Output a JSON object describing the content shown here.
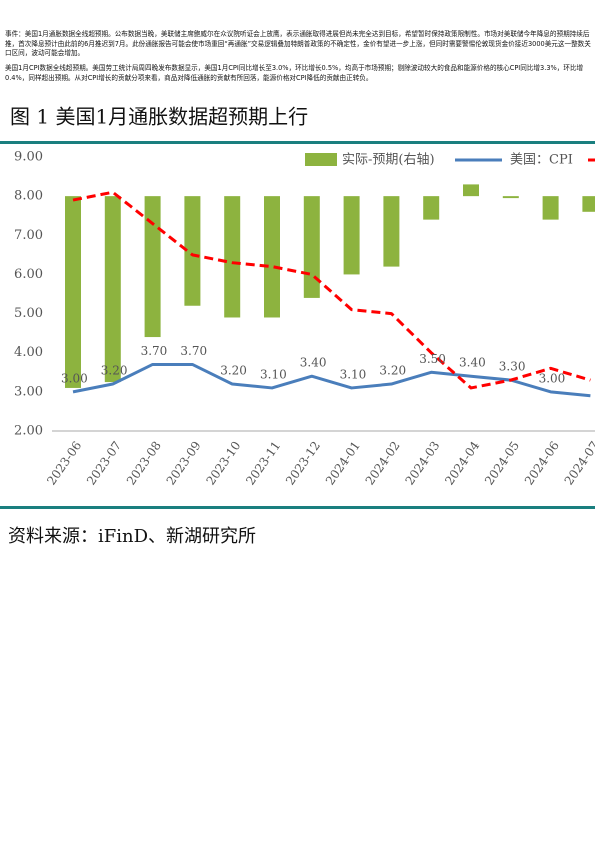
{
  "paragraphs": [
    "事件：美国1月通胀数据全线超预期。公布数据当晚，美联储主席鲍威尔在众议院听证会上放鹰，表示通胀取得进展但尚未完全达到目标，希望暂时保持政策限制性。市场对美联储今年降息的预期持续后推，首次降息预计由此前的6月推迟到7月。此份通胀报告可能会使市场重回“再通胀”交易逻辑叠加特朗普政策的不确定性，金价有望进一步上涨，但同时需要警惕伦敦现货金价接近3000美元这一整数关口区间，波动可能会增加。",
    "美国1月CPI数据全线超预期。美国劳工统计局周四晚发布数据显示，美国1月CPI同比增长至3.0%，环比增长0.5%，均高于市场预期；剔除波动较大的食品和能源价格的核心CPI同比增3.3%，环比增0.4%，同样超出预期。从对CPI增长的贡献分项来看，商品对降低通胀的贡献有所回落，能源价格对CPI降低的贡献由正转负。"
  ],
  "figure_title": "图 1 美国1月通胀数据超预期上行",
  "source": "资料来源：iFinD、新湖研究所",
  "chart_data": {
    "type": "bar_line",
    "categories": [
      "2023-06",
      "2023-07",
      "2023-08",
      "2023-09",
      "2023-10",
      "2023-11",
      "2023-12",
      "2024-01",
      "2024-02",
      "2024-03",
      "2024-04",
      "2024-05",
      "2024-06",
      "2024-07"
    ],
    "ylim": [
      2,
      9
    ],
    "yticks": [
      {
        "value": 2,
        "label": "2.00"
      },
      {
        "value": 3,
        "label": "3.00"
      },
      {
        "value": 4,
        "label": "4.00"
      },
      {
        "value": 5,
        "label": "5.00"
      },
      {
        "value": 6,
        "label": "6.00"
      },
      {
        "value": 7,
        "label": "7.00"
      },
      {
        "value": 8,
        "label": "8.00"
      },
      {
        "value": 9,
        "label": "9.00"
      }
    ],
    "bar_base": 8,
    "series": [
      {
        "name": "实际-预期(右轴)",
        "kind": "bar",
        "color": "#8db33f",
        "values": [
          -4.9,
          -4.75,
          -3.6,
          -2.8,
          -3.1,
          -3.1,
          -2.6,
          -2.0,
          -1.8,
          -0.6,
          0.3,
          -0.05,
          -0.6,
          -0.4
        ]
      },
      {
        "name": "美国：CPI",
        "kind": "line",
        "color": "#4a7ebb",
        "values": [
          3.0,
          3.2,
          3.7,
          3.7,
          3.2,
          3.1,
          3.4,
          3.1,
          3.2,
          3.5,
          3.4,
          3.3,
          3.0,
          2.9
        ],
        "value_labels": [
          "3.00",
          "3.20",
          "3.70",
          "3.70",
          "3.20",
          "3.10",
          "3.40",
          "3.10",
          "3.20",
          "3.50",
          "3.40",
          "3.30",
          "3.00",
          null
        ]
      },
      {
        "kind": "dashed",
        "color": "#ff0000",
        "values": [
          7.9,
          8.1,
          7.3,
          6.5,
          6.3,
          6.2,
          6.0,
          5.1,
          5.0,
          4.0,
          3.1,
          3.3,
          3.6,
          3.3
        ]
      }
    ]
  }
}
